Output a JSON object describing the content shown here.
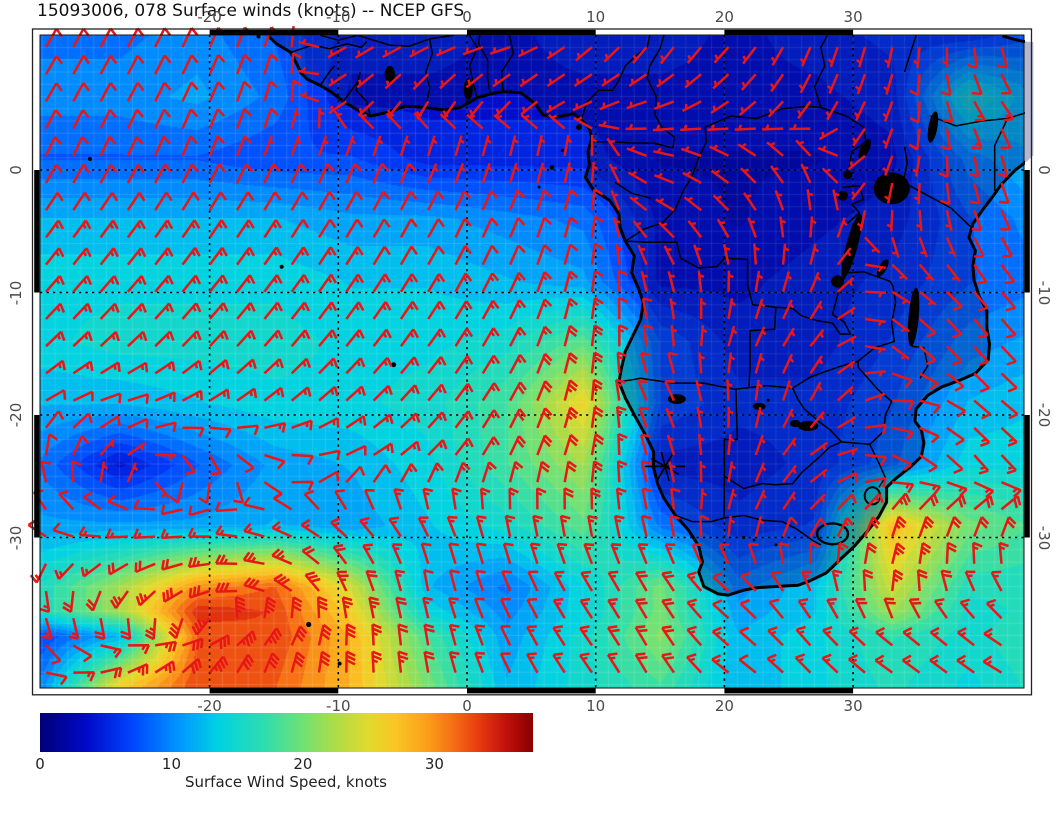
{
  "title": "15093006, 078 Surface winds (knots) -- NCEP GFS",
  "axes": {
    "lon_tick_labels": [
      "-20",
      "-10",
      "0",
      "10",
      "20",
      "30"
    ],
    "lon_tick_values": [
      -20,
      -10,
      0,
      10,
      20,
      30
    ],
    "lat_tick_labels": [
      "0",
      "-10",
      "-20",
      "-30"
    ],
    "lat_tick_values": [
      0,
      -10,
      -20,
      -30
    ]
  },
  "colorbar": {
    "label": "Surface Wind Speed, knots",
    "tick_labels": [
      "0",
      "10",
      "20",
      "30"
    ],
    "tick_values": [
      0,
      10,
      20,
      30
    ],
    "min": 0,
    "max": 37.5
  },
  "chart_data": {
    "type": "heatmap",
    "subtype": "surface-wind-speed-with-wind-barbs",
    "title": "15093006, 078 Surface winds (knots) -- NCEP GFS",
    "model": "NCEP GFS",
    "run": "15093006",
    "forecast_hour": "078",
    "units": "knots",
    "lon_range": [
      -33.2,
      43.3
    ],
    "lat_range": [
      11.0,
      -42.3
    ],
    "legend_position": "bottom",
    "grid_on": true,
    "barb_color": "#e81717",
    "grid_lons": [
      -33,
      -27,
      -21,
      -15,
      -9,
      -3,
      3,
      9,
      15,
      21,
      27,
      33,
      39,
      44
    ],
    "grid_lats": [
      11,
      6,
      1,
      -4,
      -9,
      -14,
      -19,
      -24,
      -29,
      -34,
      -36,
      -38,
      -42
    ],
    "cells_speed_dir": [
      [
        [
          9,
          30
        ],
        [
          9,
          28
        ],
        [
          10,
          25
        ],
        [
          8,
          20
        ],
        [
          5,
          240
        ],
        [
          5,
          250
        ],
        [
          4,
          260
        ],
        [
          5,
          230
        ],
        [
          5,
          210
        ],
        [
          4,
          220
        ],
        [
          5,
          200
        ],
        [
          6,
          190
        ],
        [
          6,
          180
        ],
        [
          8,
          160
        ]
      ],
      [
        [
          10,
          30
        ],
        [
          10,
          28
        ],
        [
          11,
          25
        ],
        [
          9,
          15
        ],
        [
          4,
          230
        ],
        [
          4,
          210
        ],
        [
          4,
          220
        ],
        [
          4,
          240
        ],
        [
          4,
          250
        ],
        [
          4,
          230
        ],
        [
          4,
          210
        ],
        [
          5,
          200
        ],
        [
          16,
          150
        ],
        [
          12,
          140
        ]
      ],
      [
        [
          8,
          25
        ],
        [
          8,
          25
        ],
        [
          8,
          22
        ],
        [
          7,
          20
        ],
        [
          7,
          20
        ],
        [
          5,
          18
        ],
        [
          5,
          15
        ],
        [
          5,
          10
        ],
        [
          3,
          280
        ],
        [
          3,
          300
        ],
        [
          3,
          320
        ],
        [
          4,
          200
        ],
        [
          10,
          170
        ],
        [
          12,
          160
        ]
      ],
      [
        [
          12,
          35
        ],
        [
          12,
          35
        ],
        [
          12,
          33
        ],
        [
          12,
          32
        ],
        [
          11,
          30
        ],
        [
          11,
          28
        ],
        [
          10,
          22
        ],
        [
          9,
          15
        ],
        [
          4,
          300
        ],
        [
          3,
          320
        ],
        [
          4,
          0
        ],
        [
          5,
          180
        ],
        [
          8,
          160
        ],
        [
          10,
          150
        ]
      ],
      [
        [
          14,
          40
        ],
        [
          14,
          40
        ],
        [
          14,
          38
        ],
        [
          14,
          36
        ],
        [
          13,
          33
        ],
        [
          13,
          30
        ],
        [
          12,
          25
        ],
        [
          11,
          12
        ],
        [
          4,
          340
        ],
        [
          4,
          0
        ],
        [
          5,
          20
        ],
        [
          6,
          120
        ],
        [
          8,
          140
        ],
        [
          9,
          140
        ]
      ],
      [
        [
          14,
          45
        ],
        [
          15,
          45
        ],
        [
          15,
          42
        ],
        [
          15,
          40
        ],
        [
          14,
          38
        ],
        [
          14,
          35
        ],
        [
          15,
          28
        ],
        [
          19,
          10
        ],
        [
          8,
          350
        ],
        [
          5,
          20
        ],
        [
          5,
          40
        ],
        [
          7,
          130
        ],
        [
          10,
          140
        ],
        [
          11,
          135
        ]
      ],
      [
        [
          12,
          60
        ],
        [
          12,
          75
        ],
        [
          13,
          60
        ],
        [
          14,
          52
        ],
        [
          14,
          48
        ],
        [
          15,
          40
        ],
        [
          18,
          30
        ],
        [
          26,
          10
        ],
        [
          8,
          330
        ],
        [
          6,
          0
        ],
        [
          6,
          30
        ],
        [
          8,
          90
        ],
        [
          12,
          130
        ],
        [
          13,
          130
        ]
      ],
      [
        [
          9,
          0
        ],
        [
          4,
          45
        ],
        [
          8,
          170
        ],
        [
          11,
          110
        ],
        [
          12,
          65
        ],
        [
          14,
          45
        ],
        [
          18,
          25
        ],
        [
          22,
          15
        ],
        [
          5,
          340
        ],
        [
          5,
          10
        ],
        [
          6,
          60
        ],
        [
          9,
          120
        ],
        [
          14,
          140
        ],
        [
          14,
          135
        ]
      ],
      [
        [
          11,
          315
        ],
        [
          11,
          278
        ],
        [
          11,
          270
        ],
        [
          12,
          290
        ],
        [
          11,
          310
        ],
        [
          13,
          330
        ],
        [
          15,
          350
        ],
        [
          19,
          355
        ],
        [
          9,
          350
        ],
        [
          6,
          20
        ],
        [
          7,
          40
        ],
        [
          28,
          20
        ],
        [
          20,
          30
        ],
        [
          18,
          30
        ]
      ],
      [
        [
          16,
          170
        ],
        [
          22,
          215
        ],
        [
          30,
          250
        ],
        [
          32,
          280
        ],
        [
          24,
          335
        ],
        [
          12,
          350
        ],
        [
          9,
          340
        ],
        [
          14,
          330
        ],
        [
          20,
          330
        ],
        [
          10,
          310
        ],
        [
          13,
          340
        ],
        [
          24,
          10
        ],
        [
          16,
          340
        ],
        [
          16,
          330
        ]
      ],
      [
        [
          16,
          170
        ],
        [
          22,
          195
        ],
        [
          34,
          225
        ],
        [
          33,
          0
        ],
        [
          26,
          345
        ],
        [
          14,
          345
        ],
        [
          10,
          335
        ],
        [
          14,
          328
        ],
        [
          20,
          330
        ],
        [
          11,
          310
        ],
        [
          13,
          330
        ],
        [
          22,
          350
        ],
        [
          15,
          325
        ],
        [
          16,
          315
        ]
      ],
      [
        [
          7,
          150
        ],
        [
          12,
          100
        ],
        [
          32,
          75
        ],
        [
          33,
          35
        ],
        [
          28,
          0
        ],
        [
          18,
          350
        ],
        [
          11,
          335
        ],
        [
          15,
          325
        ],
        [
          21,
          330
        ],
        [
          12,
          310
        ],
        [
          14,
          320
        ],
        [
          17,
          310
        ],
        [
          15,
          310
        ],
        [
          17,
          300
        ]
      ],
      [
        [
          10,
          90
        ],
        [
          26,
          60
        ],
        [
          33,
          35
        ],
        [
          32,
          15
        ],
        [
          28,
          0
        ],
        [
          20,
          350
        ],
        [
          12,
          335
        ],
        [
          15,
          325
        ],
        [
          18,
          330
        ],
        [
          12,
          305
        ],
        [
          14,
          315
        ],
        [
          16,
          305
        ],
        [
          14,
          305
        ],
        [
          16,
          295
        ]
      ]
    ],
    "colormap_stops_knots": [
      [
        0,
        [
          0,
          0,
          120
        ]
      ],
      [
        3.5,
        [
          0,
          10,
          200
        ]
      ],
      [
        7,
        [
          0,
          70,
          255
        ]
      ],
      [
        10.5,
        [
          0,
          150,
          255
        ]
      ],
      [
        13.5,
        [
          0,
          210,
          228
        ]
      ],
      [
        17,
        [
          45,
          222,
          175
        ]
      ],
      [
        20,
        [
          115,
          225,
          115
        ]
      ],
      [
        22.5,
        [
          175,
          220,
          70
        ]
      ],
      [
        25,
        [
          225,
          218,
          45
        ]
      ],
      [
        27,
        [
          250,
          198,
          35
        ]
      ],
      [
        29.5,
        [
          250,
          158,
          25
        ]
      ],
      [
        31.5,
        [
          245,
          108,
          20
        ]
      ],
      [
        33.5,
        [
          230,
          55,
          15
        ]
      ],
      [
        35.5,
        [
          192,
          15,
          10
        ]
      ],
      [
        37.5,
        [
          135,
          0,
          0
        ]
      ]
    ],
    "marker": {
      "shape": "asterisk",
      "lon": 15.4,
      "lat": -24.2
    }
  }
}
